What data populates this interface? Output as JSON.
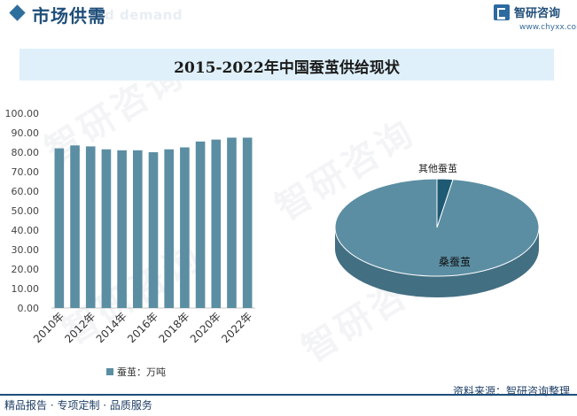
{
  "header": {
    "section_title": "市场供需",
    "ghost_text": "d demand",
    "brand_name": "智研咨询",
    "brand_url": "www.chyxx.com"
  },
  "chart_title": "2015-2022年中国蚕茧供给现状",
  "watermark": "智研咨询",
  "colors": {
    "bar": "#5b8ea3",
    "pie_top": "#5b8ea3",
    "pie_side": "#436f82",
    "small_slice": "#1e5a73",
    "brand": "#1f4e79"
  },
  "chart_data": [
    {
      "type": "bar",
      "categories": [
        "2010年",
        "2011年",
        "2012年",
        "2013年",
        "2014年",
        "2015年",
        "2016年",
        "2017年",
        "2018年",
        "2019年",
        "2020年",
        "2021年",
        "2022年"
      ],
      "series": [
        {
          "name": "蚕茧：万吨",
          "values": [
            82.0,
            83.5,
            83.0,
            81.5,
            81.0,
            81.0,
            80.0,
            81.5,
            82.5,
            85.5,
            86.5,
            87.5,
            87.5
          ]
        }
      ],
      "tick_labels_x": [
        "2010年",
        "2012年",
        "2014年",
        "2016年",
        "2018年",
        "2020年",
        "2022年"
      ],
      "y_ticks": [
        "0.00",
        "10.00",
        "20.00",
        "30.00",
        "40.00",
        "50.00",
        "60.00",
        "70.00",
        "80.00",
        "90.00",
        "100.00"
      ],
      "ylim": [
        0,
        100
      ],
      "legend": "bottom-center"
    },
    {
      "type": "pie",
      "labels": [
        "桑蚕茧",
        "其他蚕茧"
      ],
      "values": [
        97.5,
        2.5
      ]
    }
  ],
  "footer": {
    "left": "精品报告 · 专项定制 · 品质服务",
    "right": "资料来源：智研咨询整理"
  }
}
